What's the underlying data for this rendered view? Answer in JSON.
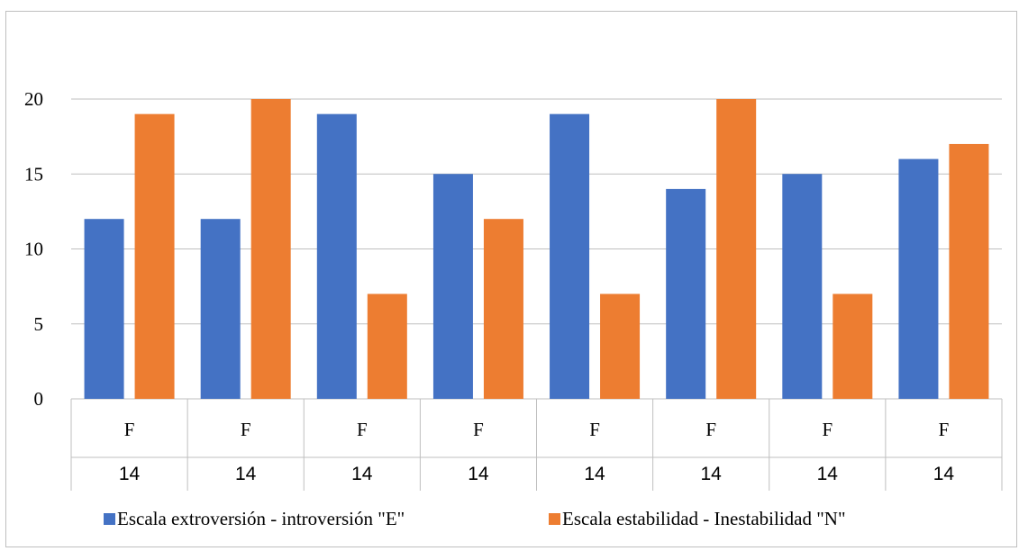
{
  "chart_data": {
    "type": "bar",
    "title": "",
    "xlabel": "",
    "ylabel": "",
    "ylim": [
      0,
      20
    ],
    "yticks": [
      0,
      5,
      10,
      15,
      20
    ],
    "grid": true,
    "legend_position": "bottom",
    "categories": [
      [
        "F",
        "14"
      ],
      [
        "F",
        "14"
      ],
      [
        "F",
        "14"
      ],
      [
        "F",
        "14"
      ],
      [
        "F",
        "14"
      ],
      [
        "F",
        "14"
      ],
      [
        "F",
        "14"
      ],
      [
        "F",
        "14"
      ]
    ],
    "series": [
      {
        "name": "Escala extroversión - introversión \"E\"",
        "color": "#4472C4",
        "values": [
          12,
          12,
          19,
          15,
          19,
          14,
          15,
          16
        ]
      },
      {
        "name": "Escala estabilidad - Inestabilidad \"N\"",
        "color": "#ED7D31",
        "values": [
          19,
          20,
          7,
          12,
          7,
          20,
          7,
          17
        ]
      }
    ]
  }
}
